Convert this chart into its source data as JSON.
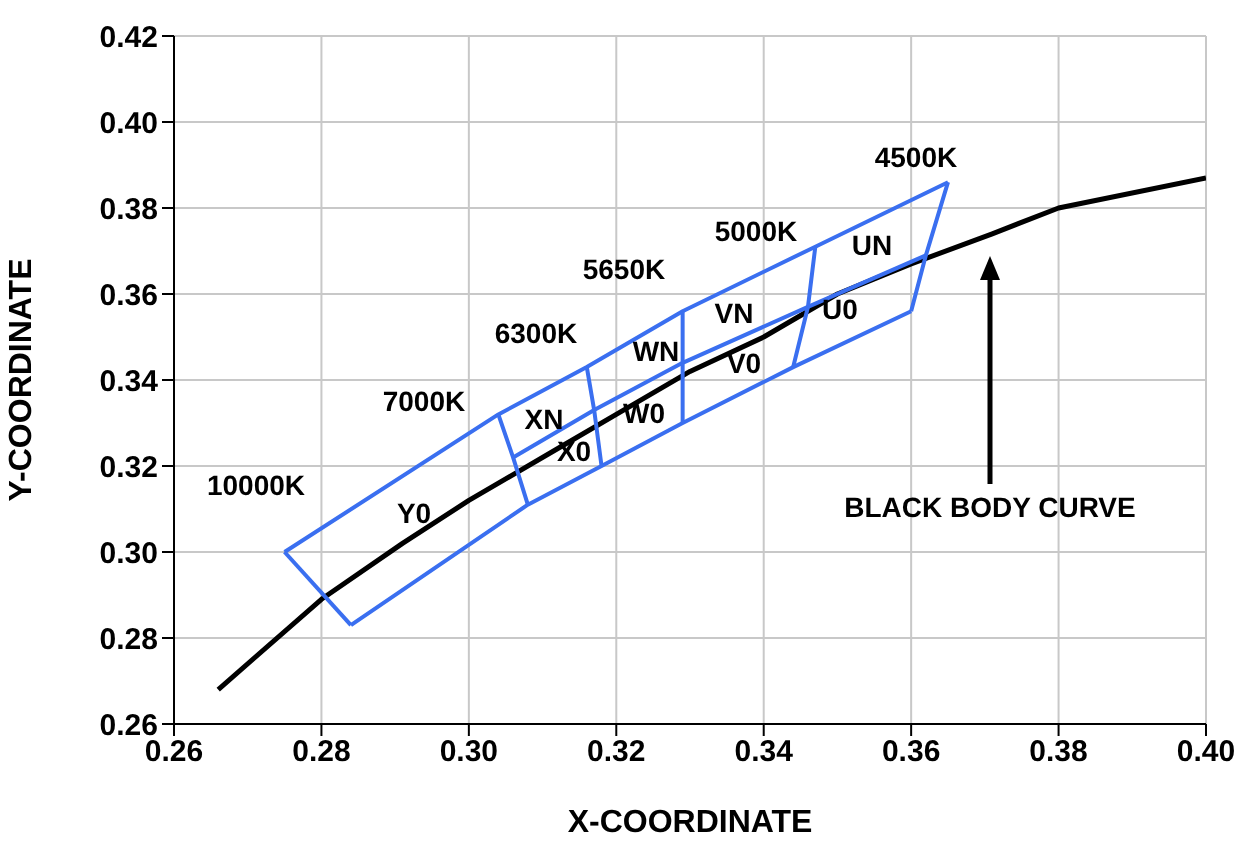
{
  "chart_data": {
    "type": "line",
    "xlabel": "X-COORDINATE",
    "ylabel": "Y-COORDINATE",
    "xlim": [
      0.26,
      0.4
    ],
    "ylim": [
      0.26,
      0.42
    ],
    "xticks": [
      {
        "value": 0.26,
        "label": "0.26"
      },
      {
        "value": 0.28,
        "label": "0.28"
      },
      {
        "value": 0.3,
        "label": "0.30"
      },
      {
        "value": 0.32,
        "label": "0.32"
      },
      {
        "value": 0.34,
        "label": "0.34"
      },
      {
        "value": 0.36,
        "label": "0.36"
      },
      {
        "value": 0.38,
        "label": "0.38"
      },
      {
        "value": 0.4,
        "label": "0.40"
      }
    ],
    "yticks": [
      {
        "value": 0.26,
        "label": "0.26"
      },
      {
        "value": 0.28,
        "label": "0.28"
      },
      {
        "value": 0.3,
        "label": "0.30"
      },
      {
        "value": 0.32,
        "label": "0.32"
      },
      {
        "value": 0.34,
        "label": "0.34"
      },
      {
        "value": 0.36,
        "label": "0.36"
      },
      {
        "value": 0.38,
        "label": "0.38"
      },
      {
        "value": 0.4,
        "label": "0.40"
      },
      {
        "value": 0.42,
        "label": "0.42"
      }
    ],
    "grid": true,
    "legend": false,
    "marker": "none",
    "line_style": "solid",
    "series": [
      {
        "color": "#000000",
        "x": [
          0.266,
          0.28,
          0.291,
          0.3,
          0.313,
          0.32,
          0.33,
          0.34,
          0.35,
          0.36,
          0.371,
          0.38,
          0.4
        ],
        "values": [
          0.268,
          0.289,
          0.302,
          0.312,
          0.325,
          0.332,
          0.342,
          0.35,
          0.36,
          0.367,
          0.374,
          0.38,
          0.387
        ]
      },
      {
        "color": "#3a6ff0",
        "x": [
          0.275,
          0.304,
          0.316,
          0.329,
          0.347,
          0.365
        ],
        "values": [
          0.3,
          0.332,
          0.343,
          0.356,
          0.371,
          0.386
        ]
      },
      {
        "color": "#3a6ff0",
        "x": [
          0.306,
          0.317,
          0.329,
          0.346,
          0.362
        ],
        "values": [
          0.322,
          0.333,
          0.344,
          0.357,
          0.369
        ]
      },
      {
        "color": "#3a6ff0",
        "x": [
          0.284,
          0.308,
          0.318,
          0.329,
          0.344,
          0.36
        ],
        "values": [
          0.283,
          0.311,
          0.32,
          0.33,
          0.343,
          0.356
        ]
      },
      {
        "color": "#3a6ff0",
        "x": [
          0.275,
          0.284
        ],
        "values": [
          0.3,
          0.283
        ]
      },
      {
        "color": "#3a6ff0",
        "x": [
          0.304,
          0.306,
          0.308
        ],
        "values": [
          0.332,
          0.322,
          0.311
        ]
      },
      {
        "color": "#3a6ff0",
        "x": [
          0.316,
          0.317,
          0.318
        ],
        "values": [
          0.343,
          0.333,
          0.32
        ]
      },
      {
        "color": "#3a6ff0",
        "x": [
          0.329,
          0.329,
          0.329
        ],
        "values": [
          0.356,
          0.344,
          0.33
        ]
      },
      {
        "color": "#3a6ff0",
        "x": [
          0.344,
          0.346,
          0.347
        ],
        "values": [
          0.343,
          0.357,
          0.371
        ]
      },
      {
        "color": "#3a6ff0",
        "x": [
          0.36,
          0.362,
          0.365
        ],
        "values": [
          0.356,
          0.369,
          0.386
        ]
      }
    ],
    "annotations": [
      "10000K",
      "7000K",
      "6300K",
      "5650K",
      "5000K",
      "4500K",
      "Y0",
      "XN",
      "X0",
      "WN",
      "W0",
      "VN",
      "V0",
      "UN",
      "U0",
      "BLACK BODY CURVE"
    ]
  }
}
